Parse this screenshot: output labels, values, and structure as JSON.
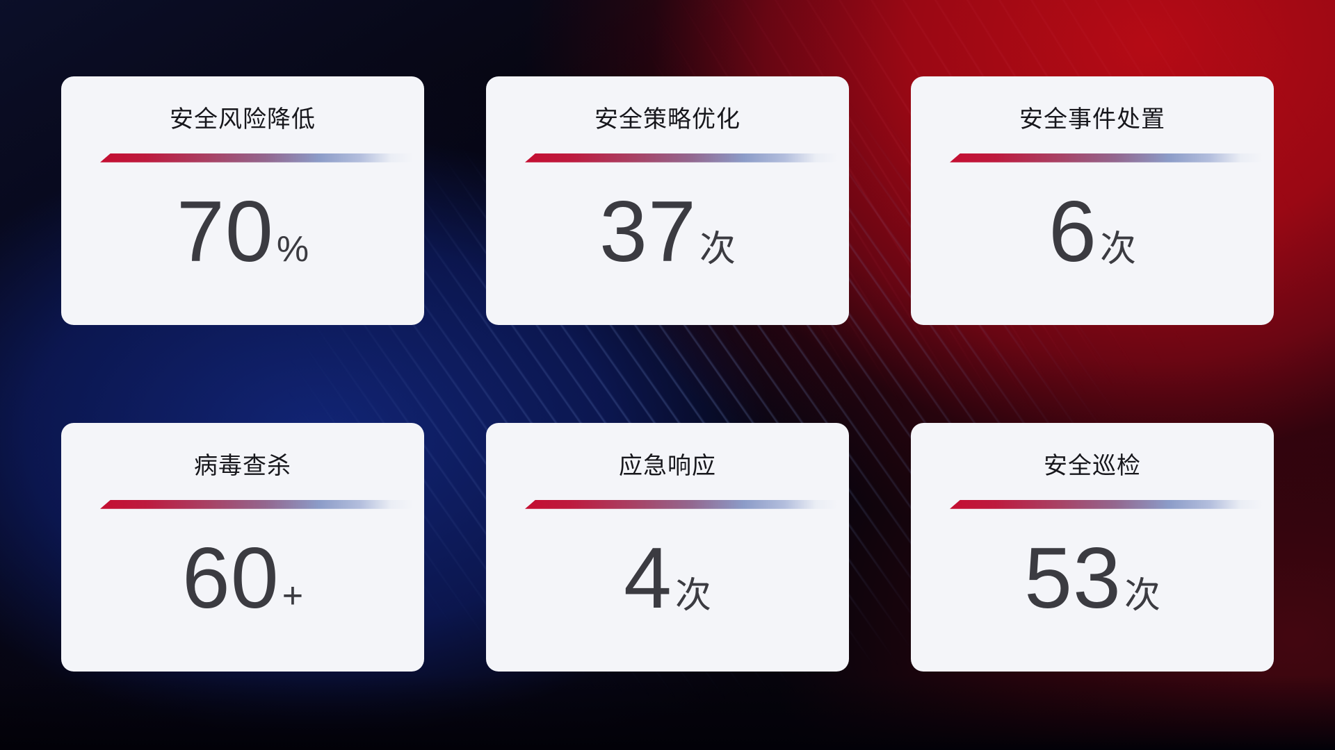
{
  "cards": [
    {
      "title": "安全风险降低",
      "value": "70",
      "unit": "%"
    },
    {
      "title": "安全策略优化",
      "value": "37",
      "unit": "次"
    },
    {
      "title": "安全事件处置",
      "value": "6",
      "unit": "次"
    },
    {
      "title": "病毒查杀",
      "value": "60",
      "unit": "+"
    },
    {
      "title": "应急响应",
      "value": "4",
      "unit": "次"
    },
    {
      "title": "安全巡检",
      "value": "53",
      "unit": "次"
    }
  ],
  "colors": {
    "card_background": "#f4f5f9",
    "title_text": "#17171c",
    "value_text": "#3b3b41",
    "divider_red": "#c40e31",
    "divider_blue": "#8c9cc8",
    "background_red": "#b50b15",
    "background_blue": "#12267a",
    "background_dark": "#06040c"
  }
}
